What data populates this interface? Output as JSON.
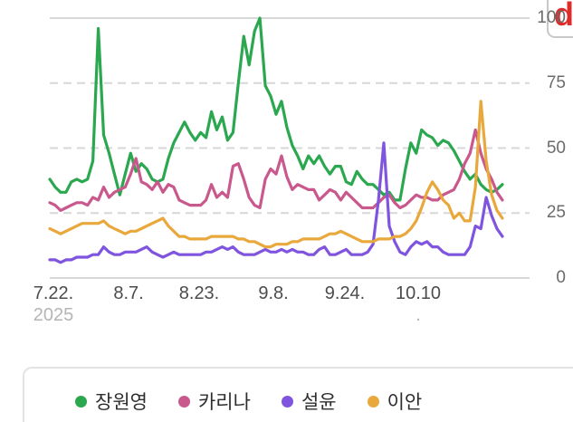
{
  "watermark": {
    "letter": "d"
  },
  "chart_data": {
    "type": "line",
    "ylim": [
      0,
      100
    ],
    "grid": "horizontal, dashed at 25/50/75, solid at 0/100",
    "grid_color": "#d7d7d7",
    "legend_position": "bottom",
    "y_ticks": [
      {
        "label": "100",
        "value": 100
      },
      {
        "label": "75",
        "value": 75
      },
      {
        "label": "50",
        "value": 50
      },
      {
        "label": "25",
        "value": 25
      },
      {
        "label": "0",
        "value": 0
      }
    ],
    "x_ticks": [
      {
        "label": "7.22.",
        "sublabel": "2025",
        "pos": 0.008
      },
      {
        "label": "8.7.",
        "pos": 0.174
      },
      {
        "label": "8.23.",
        "pos": 0.33
      },
      {
        "label": "9.8.",
        "pos": 0.494
      },
      {
        "label": "9.24.",
        "pos": 0.652
      },
      {
        "label": "10.10",
        "sublabel": ".",
        "pos": 0.814
      }
    ],
    "series": [
      {
        "name": "장원영",
        "color": "#2BA84F",
        "values": [
          38,
          35,
          33,
          33,
          37,
          38,
          37,
          38,
          45,
          96,
          55,
          48,
          40,
          32,
          40,
          48,
          41,
          44,
          42,
          38,
          37,
          38,
          46,
          52,
          56,
          60,
          56,
          53,
          56,
          54,
          64,
          57,
          62,
          53,
          56,
          75,
          93,
          82,
          95,
          100,
          74,
          70,
          63,
          68,
          58,
          51,
          47,
          42,
          47,
          44,
          47,
          43,
          40,
          43,
          43,
          37,
          36,
          41,
          38,
          36,
          36,
          34,
          32,
          33,
          30,
          30,
          42,
          52,
          48,
          57,
          55,
          54,
          51,
          53,
          52,
          49,
          45,
          41,
          38,
          40,
          36,
          34,
          33,
          34,
          36
        ]
      },
      {
        "name": "카리나",
        "color": "#C9588C",
        "values": [
          29,
          28,
          26,
          27,
          28,
          29,
          29,
          28,
          31,
          30,
          35,
          31,
          33,
          34,
          35,
          40,
          46,
          37,
          36,
          34,
          37,
          33,
          36,
          35,
          30,
          29,
          28,
          28,
          28,
          30,
          36,
          31,
          33,
          31,
          43,
          44,
          38,
          31,
          28,
          27,
          38,
          42,
          40,
          47,
          39,
          34,
          36,
          35,
          34,
          34,
          30,
          32,
          34,
          33,
          30,
          33,
          31,
          29,
          27,
          27,
          27,
          29,
          31,
          32,
          29,
          27,
          28,
          30,
          32,
          31,
          31,
          30,
          30,
          32,
          33,
          34,
          38,
          44,
          48,
          57,
          48,
          42,
          38,
          33,
          30
        ]
      },
      {
        "name": "설윤",
        "color": "#7F55E0",
        "values": [
          7,
          7,
          6,
          7,
          7,
          8,
          8,
          8,
          9,
          9,
          12,
          10,
          9,
          9,
          10,
          10,
          10,
          11,
          12,
          10,
          9,
          8,
          9,
          10,
          9,
          9,
          9,
          9,
          9,
          10,
          10,
          11,
          12,
          11,
          12,
          10,
          9,
          9,
          9,
          10,
          11,
          10,
          10,
          11,
          10,
          11,
          10,
          10,
          9,
          9,
          11,
          12,
          9,
          9,
          10,
          11,
          9,
          9,
          9,
          10,
          13,
          30,
          52,
          20,
          14,
          10,
          9,
          12,
          14,
          13,
          14,
          12,
          12,
          10,
          9,
          9,
          9,
          9,
          12,
          20,
          19,
          31,
          24,
          19,
          16
        ]
      },
      {
        "name": "이안",
        "color": "#E9A83C",
        "values": [
          19,
          18,
          17,
          18,
          19,
          20,
          21,
          21,
          21,
          21,
          22,
          20,
          19,
          18,
          17,
          18,
          18,
          19,
          20,
          21,
          22,
          23,
          20,
          18,
          16,
          16,
          15,
          15,
          15,
          15,
          16,
          16,
          16,
          16,
          16,
          15,
          15,
          14,
          14,
          13,
          12,
          12,
          13,
          13,
          13,
          14,
          14,
          15,
          15,
          15,
          15,
          16,
          17,
          17,
          18,
          17,
          16,
          15,
          14,
          14,
          14,
          15,
          15,
          15,
          16,
          16,
          17,
          19,
          22,
          27,
          33,
          37,
          34,
          30,
          28,
          23,
          25,
          22,
          22,
          35,
          68,
          45,
          32,
          26,
          23
        ]
      }
    ]
  }
}
